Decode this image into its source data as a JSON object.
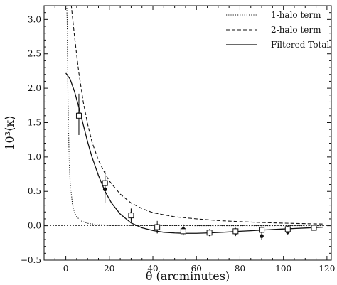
{
  "chart_data": {
    "type": "line",
    "title": "",
    "xlabel": "θ (arcminutes)",
    "ylabel": "10³⟨κ⟩",
    "xlim": [
      -10,
      122
    ],
    "ylim": [
      -0.5,
      3.2
    ],
    "xticks": [
      0,
      20,
      40,
      60,
      80,
      100,
      120
    ],
    "yticks": [
      -0.5,
      0.0,
      0.5,
      1.0,
      1.5,
      2.0,
      2.5,
      3.0
    ],
    "ytick_labels": [
      "−0.5",
      "0.0",
      "0.5",
      "1.0",
      "1.5",
      "2.0",
      "2.5",
      "3.0"
    ],
    "legend_position": "top-right",
    "series": [
      {
        "name": "1-halo term",
        "style": "dotted",
        "x": [
          0.3,
          0.6,
          1,
          1.5,
          2,
          3,
          4,
          5,
          7,
          10,
          15,
          20,
          30,
          40,
          60,
          80,
          100,
          118
        ],
        "y": [
          3.3,
          3.0,
          1.8,
          1.0,
          0.62,
          0.32,
          0.19,
          0.13,
          0.07,
          0.035,
          0.015,
          0.008,
          0.004,
          0.002,
          0.001,
          0.0005,
          0.0003,
          0.0002
        ]
      },
      {
        "name": "2-halo term",
        "style": "dashed",
        "x": [
          2.2,
          3,
          4,
          5,
          6,
          8,
          10,
          12,
          15,
          18,
          20,
          25,
          30,
          35,
          40,
          50,
          60,
          70,
          80,
          90,
          100,
          110,
          118
        ],
        "y": [
          3.3,
          3.05,
          2.75,
          2.48,
          2.22,
          1.8,
          1.48,
          1.22,
          0.95,
          0.76,
          0.65,
          0.46,
          0.33,
          0.25,
          0.19,
          0.13,
          0.1,
          0.075,
          0.06,
          0.047,
          0.038,
          0.03,
          0.025
        ]
      },
      {
        "name": "Filtered Total",
        "style": "solid",
        "x": [
          0,
          2,
          4,
          6,
          8,
          10,
          12,
          15,
          18,
          21,
          25,
          30,
          35,
          40,
          45,
          50,
          55,
          60,
          65,
          70,
          75,
          80,
          85,
          90,
          95,
          100,
          105,
          110,
          115,
          118
        ],
        "y": [
          2.22,
          2.13,
          1.95,
          1.72,
          1.47,
          1.22,
          1.0,
          0.73,
          0.5,
          0.33,
          0.17,
          0.04,
          -0.03,
          -0.07,
          -0.095,
          -0.105,
          -0.11,
          -0.11,
          -0.105,
          -0.098,
          -0.09,
          -0.08,
          -0.072,
          -0.063,
          -0.055,
          -0.047,
          -0.04,
          -0.033,
          -0.026,
          -0.022
        ]
      }
    ],
    "points": {
      "squares": {
        "x": [
          6,
          18,
          30,
          42,
          54,
          66,
          78,
          90,
          102,
          114
        ],
        "y": [
          1.6,
          0.62,
          0.15,
          -0.02,
          -0.08,
          -0.1,
          -0.08,
          -0.06,
          -0.05,
          -0.03
        ],
        "err": [
          0.28,
          0.18,
          0.1,
          0.09,
          0.06,
          0.05,
          0.05,
          0.05,
          0.05,
          0.03
        ]
      },
      "circles": {
        "x": [
          6,
          18,
          30,
          42,
          54,
          66,
          78,
          90,
          102,
          114
        ],
        "y": [
          1.62,
          0.53,
          0.17,
          -0.04,
          -0.05,
          -0.1,
          -0.1,
          -0.15,
          -0.09,
          -0.04
        ],
        "err": [
          0.3,
          0.2,
          0.08,
          0.07,
          0.07,
          0.05,
          0.05,
          0.05,
          0.04,
          0.03
        ]
      }
    },
    "legend": [
      {
        "label": "1-halo term",
        "style": "dotted"
      },
      {
        "label": "2-halo term",
        "style": "dashed"
      },
      {
        "label": "Filtered Total",
        "style": "solid"
      }
    ],
    "colors": {
      "ink": "#111111",
      "background": "#ffffff"
    }
  }
}
